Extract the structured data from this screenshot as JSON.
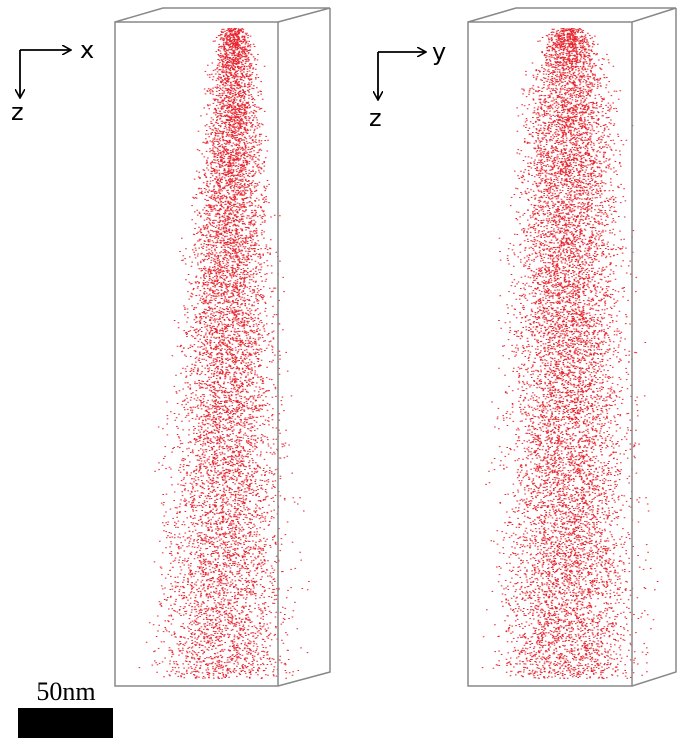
{
  "axes_left": {
    "horizontal": "x",
    "vertical": "z"
  },
  "axes_right": {
    "horizontal": "y",
    "vertical": "z"
  },
  "scale_bar": {
    "label": "50nm"
  }
}
